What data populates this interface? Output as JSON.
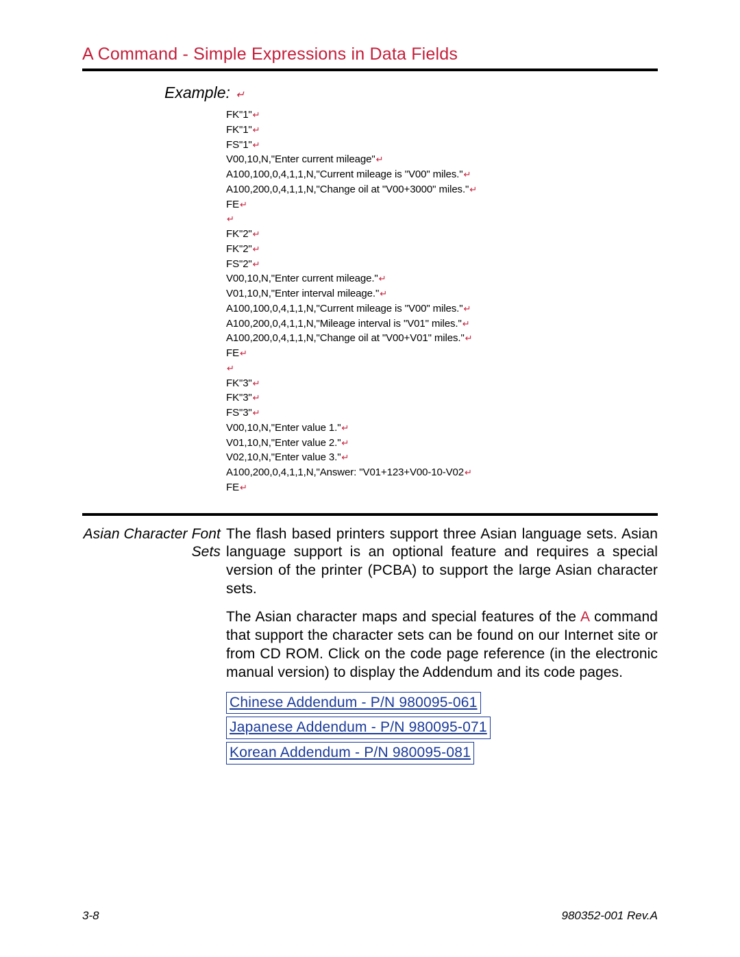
{
  "colors": {
    "accent_red": "#c41e3a",
    "link_blue": "#1a3a9a",
    "text_black": "#000000",
    "background": "#ffffff",
    "rule_black": "#000000"
  },
  "typography": {
    "title_fontsize": 25,
    "body_fontsize": 21,
    "code_fontsize": 15,
    "footer_fontsize": 17,
    "font_family": "Arial"
  },
  "title": "A Command - Simple Expressions in Data Fields",
  "example": {
    "label": "Example:",
    "code_lines": [
      "FK\"1\"",
      "FK\"1\"",
      "FS\"1\"",
      "V00,10,N,\"Enter current mileage\"",
      "A100,100,0,4,1,1,N,\"Current mileage is \"V00\" miles.\"",
      "A100,200,0,4,1,1,N,\"Change oil at \"V00+3000\" miles.\"",
      "FE",
      "",
      "FK\"2\"",
      "FK\"2\"",
      "FS\"2\"",
      "V00,10,N,\"Enter current mileage.\"",
      "V01,10,N,\"Enter interval mileage.\"",
      "A100,100,0,4,1,1,N,\"Current mileage is \"V00\" miles.\"",
      "A100,200,0,4,1,1,N,\"Mileage interval is \"V01\" miles.\"",
      "A100,200,0,4,1,1,N,\"Change oil at \"V00+V01\" miles.\"",
      "FE",
      "",
      "FK\"3\"",
      "FK\"3\"",
      "FS\"3\"",
      "V00,10,N,\"Enter value 1.\"",
      "V01,10,N,\"Enter value 2.\"",
      "V02,10,N,\"Enter value 3.\"",
      "A100,200,0,4,1,1,N,\"Answer: \"V01+123+V00-10-V02",
      "FE"
    ]
  },
  "section": {
    "label_line1": "Asian Character Font",
    "label_line2": "Sets",
    "para1_pre": "The flash based printers support three Asian language sets. Asian language support is an optional feature and requires a special version of the printer (PCBA) to support the large Asian character sets.",
    "para2_pre": "The Asian character maps and special features of the ",
    "para2_cmd": "A",
    "para2_post": " command that support the character sets can be found on our Internet site or from CD ROM. Click on the code page reference (in the electronic manual version) to display the Addendum and its code pages.",
    "links": [
      "Chinese Addendum -  P/N 980095-061",
      "Japanese Addendum - P/N 980095-071",
      "Korean Addendum  -  P/N 980095-081"
    ]
  },
  "footer": {
    "page": "3-8",
    "rev": "980352-001 Rev.A"
  }
}
